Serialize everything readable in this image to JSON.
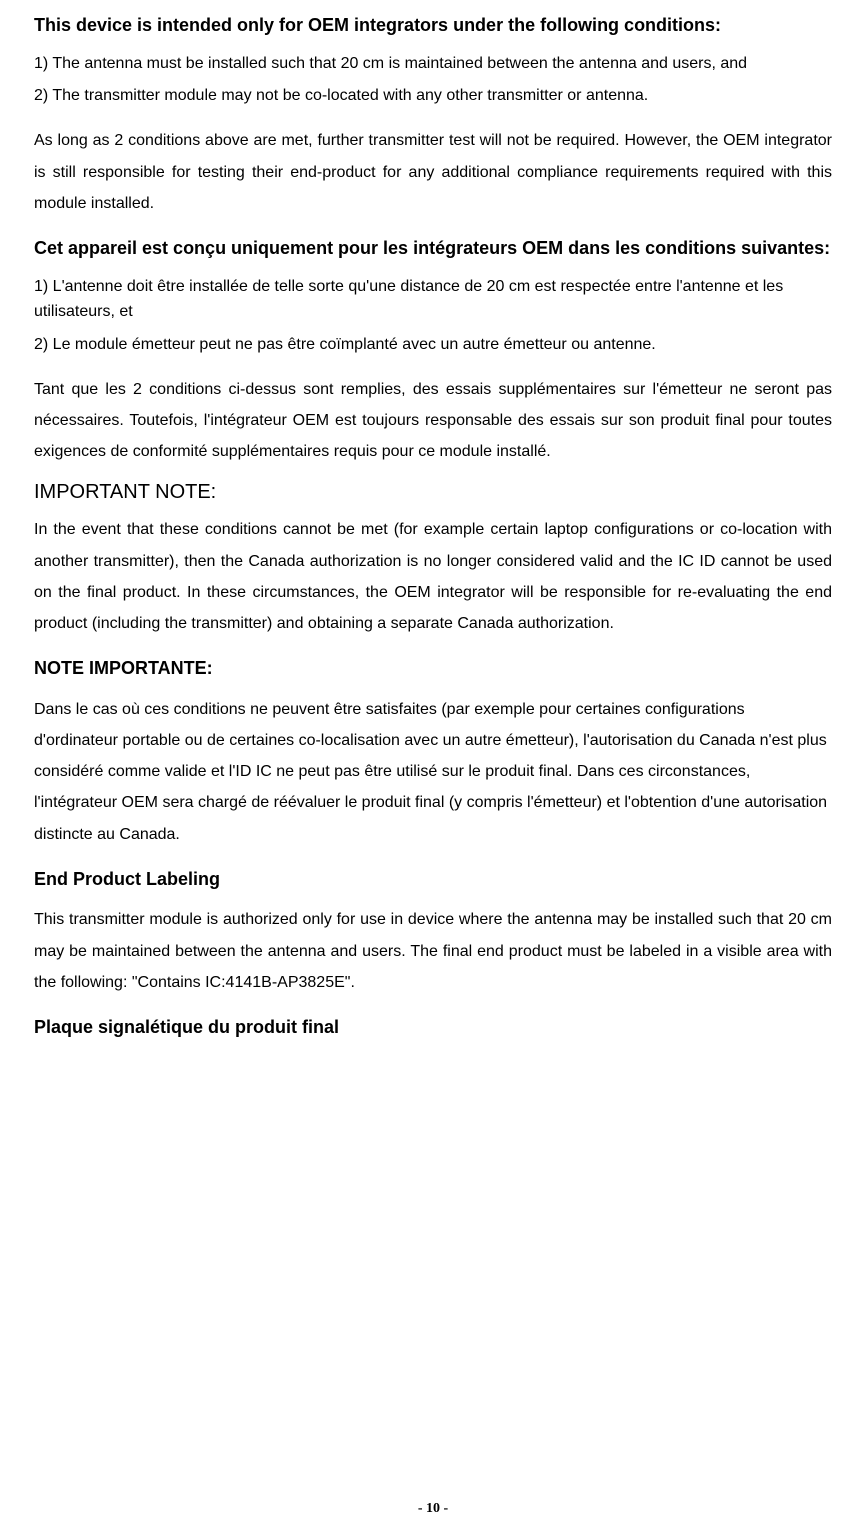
{
  "doc": {
    "colors": {
      "text": "#000000",
      "background": "#ffffff"
    },
    "typography": {
      "body_font": "Arial",
      "body_size_pt": 12,
      "heading_size_pt": 14,
      "footer_font": "Times New Roman",
      "footer_size_pt": 10
    },
    "sections": {
      "h1_en": "This device is intended only for OEM integrators under the following conditions:",
      "p1_en_line1": "1) The antenna must be installed such that 20 cm is maintained between the antenna and users, and",
      "p1_en_line2": "2) The transmitter module may not be co-located with any other transmitter or antenna.",
      "p2_en": "As long as 2 conditions above are met, further transmitter test will not be required. However, the OEM integrator is still responsible for testing their end-product for any additional compliance requirements required with this module installed.",
      "h1_fr": "Cet appareil est conçu uniquement pour les intégrateurs OEM dans les conditions suivantes:",
      "p1_fr_line1": "1) L'antenne doit être installée de telle sorte qu'une distance de 20 cm est respectée entre l'antenne et les utilisateurs, et",
      "p1_fr_line2": "2) Le module émetteur peut ne pas être coïmplanté avec un autre émetteur ou antenne.",
      "p2_fr": "Tant que les 2 conditions ci-dessus sont remplies, des essais supplémentaires sur l'émetteur ne seront pas nécessaires. Toutefois, l'intégrateur OEM est toujours responsable des essais sur son produit final pour toutes exigences de conformité supplémentaires requis pour ce module installé.",
      "h2_en": "IMPORTANT NOTE:",
      "p3_en": "In the event that these conditions cannot be met (for example certain laptop configurations or co-location with another transmitter), then the Canada authorization is no longer considered valid and the IC ID cannot be used on the final product. In these circumstances, the OEM integrator will be responsible for re-evaluating the end product (including the transmitter) and obtaining a separate Canada authorization.",
      "h2_fr": "NOTE IMPORTANTE:",
      "p3_fr": "Dans le cas où ces conditions ne peuvent être satisfaites (par exemple pour certaines configurations d'ordinateur portable ou de certaines co-localisation avec un autre émetteur), l'autorisation du Canada n'est plus considéré comme valide et l'ID IC ne peut pas être utilisé sur le produit final. Dans ces circonstances, l'intégrateur OEM sera chargé de réévaluer le produit final (y compris l'émetteur) et l'obtention d'une autorisation distincte au Canada.",
      "h3_en": "End Product Labeling",
      "p4_en": "This transmitter module is authorized only for use in device where the antenna may be installed such that 20 cm may be maintained between the antenna and users. The final end product must be labeled in a visible area with the following: \"Contains IC:4141B-AP3825E\".",
      "h3_fr": "Plaque signalétique du produit final"
    },
    "footer": "- 10 -"
  }
}
